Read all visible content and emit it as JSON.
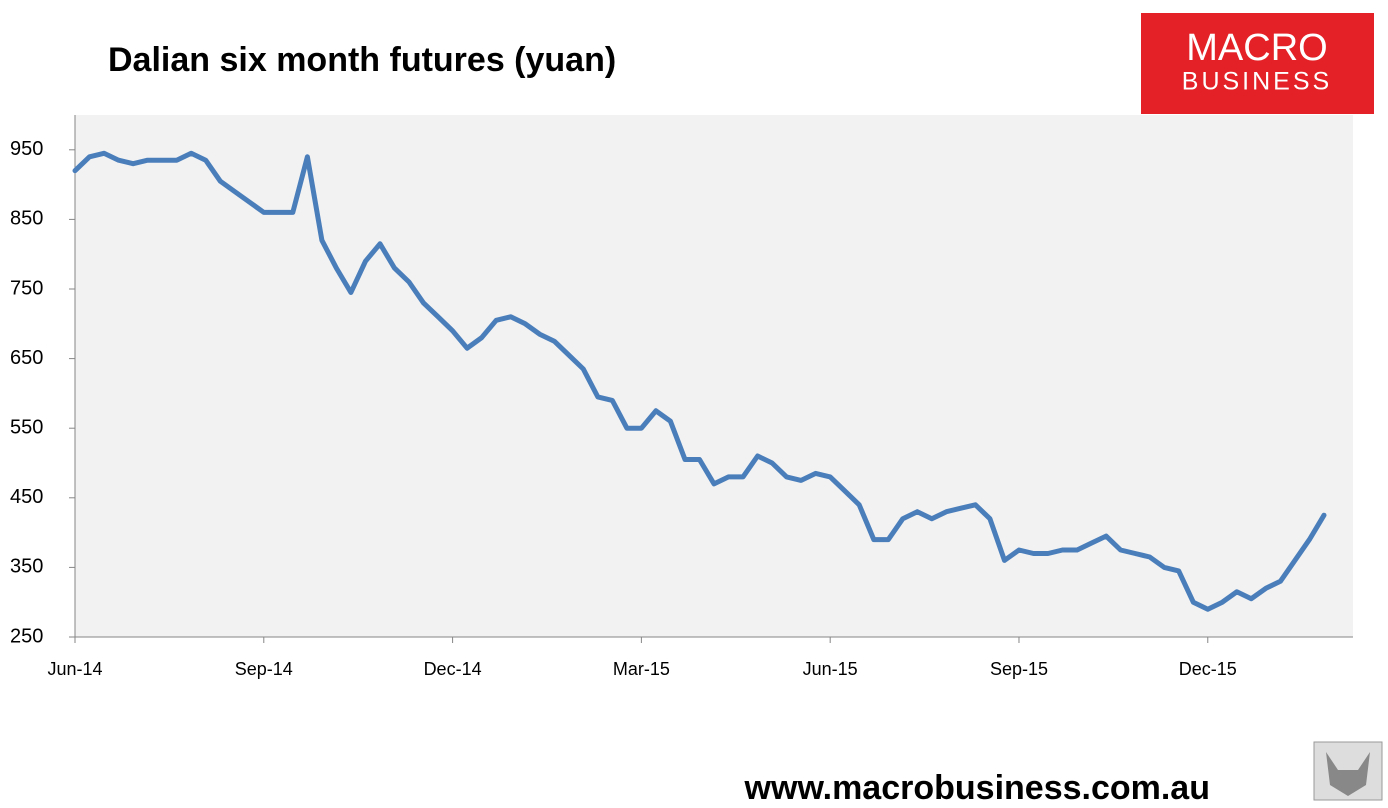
{
  "chart_data": {
    "type": "line",
    "title": "Dalian six month futures (yuan)",
    "categories": [
      "Jun-14",
      null,
      null,
      null,
      null,
      null,
      null,
      null,
      null,
      null,
      null,
      null,
      null,
      "Sep-14",
      null,
      null,
      null,
      null,
      null,
      null,
      null,
      null,
      null,
      null,
      null,
      null,
      "Dec-14",
      null,
      null,
      null,
      null,
      null,
      null,
      null,
      null,
      null,
      null,
      null,
      null,
      "Mar-15",
      null,
      null,
      null,
      null,
      null,
      null,
      null,
      null,
      null,
      null,
      null,
      null,
      "Jun-15",
      null,
      null,
      null,
      null,
      null,
      null,
      null,
      null,
      null,
      null,
      null,
      null,
      "Sep-15",
      null,
      null,
      null,
      null,
      null,
      null,
      null,
      null,
      null,
      null,
      null,
      null,
      "Dec-15",
      null,
      null,
      null,
      null,
      null,
      null,
      null,
      null
    ],
    "values": [
      920,
      940,
      945,
      935,
      930,
      935,
      935,
      935,
      945,
      935,
      905,
      890,
      875,
      860,
      860,
      860,
      940,
      820,
      780,
      745,
      790,
      815,
      780,
      760,
      730,
      710,
      690,
      665,
      680,
      705,
      710,
      700,
      685,
      675,
      655,
      635,
      595,
      590,
      550,
      550,
      575,
      560,
      505,
      505,
      470,
      480,
      480,
      510,
      500,
      480,
      475,
      485,
      480,
      460,
      440,
      390,
      390,
      420,
      430,
      420,
      430,
      435,
      440,
      420,
      360,
      375,
      370,
      370,
      375,
      375,
      385,
      395,
      375,
      370,
      365,
      350,
      345,
      300,
      290,
      300,
      315,
      305,
      320,
      330,
      360,
      390,
      425
    ],
    "color": "#4a7ebb",
    "ylim": [
      250,
      1000
    ],
    "yticks": [
      250,
      350,
      450,
      550,
      650,
      750,
      850,
      950
    ]
  },
  "logo_top": "MACRO",
  "logo_bottom": "BUSINESS",
  "footer": "www.macrobusiness.com.au"
}
